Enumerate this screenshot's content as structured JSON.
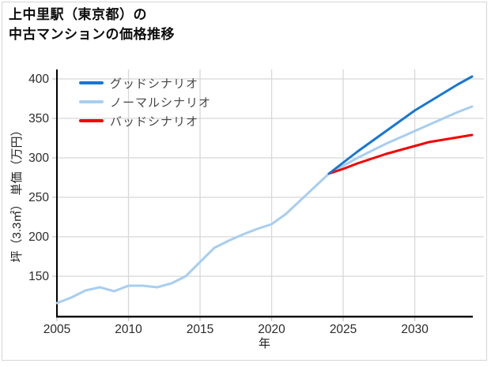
{
  "page": {
    "title_line1": "上中里駅（東京都）の",
    "title_line2": "中古マンションの価格推移"
  },
  "legend": {
    "items": [
      {
        "key": "good",
        "label": "グッドシナリオ",
        "color": "#1777d2"
      },
      {
        "key": "normal",
        "label": "ノーマルシナリオ",
        "color": "#a8cef0"
      },
      {
        "key": "bad",
        "label": "バッドシナリオ",
        "color": "#f40000"
      }
    ]
  },
  "chart_data": {
    "type": "line",
    "title": "上中里駅（東京都）の中古マンションの価格推移",
    "xlabel": "年",
    "ylabel": "坪（3.3㎡） 単価（万円）",
    "xlim": [
      2005,
      2034
    ],
    "ylim": [
      99,
      412
    ],
    "x_ticks": [
      2005,
      2010,
      2015,
      2020,
      2025,
      2030
    ],
    "y_ticks": [
      150,
      200,
      250,
      300,
      350,
      400
    ],
    "grid": true,
    "legend_position": "upper-left",
    "series": [
      {
        "key": "normal",
        "name": "ノーマルシナリオ",
        "color": "#a8cef0",
        "x": [
          2005,
          2006,
          2007,
          2008,
          2009,
          2010,
          2011,
          2012,
          2013,
          2014,
          2015,
          2016,
          2017,
          2018,
          2019,
          2020,
          2021,
          2022,
          2023,
          2024,
          2025,
          2026,
          2027,
          2028,
          2029,
          2030,
          2031,
          2032,
          2033,
          2034
        ],
        "values": [
          116,
          123,
          132,
          136,
          131,
          138,
          138,
          136,
          141,
          150,
          168,
          186,
          195,
          203,
          210,
          216,
          229,
          246,
          263,
          280,
          290,
          300,
          309,
          318,
          326,
          334,
          342,
          350,
          358,
          365
        ]
      },
      {
        "key": "bad",
        "name": "バッドシナリオ",
        "color": "#f40000",
        "x": [
          2024,
          2025,
          2026,
          2027,
          2028,
          2029,
          2030,
          2031,
          2032,
          2033,
          2034
        ],
        "values": [
          280,
          286,
          293,
          299,
          305,
          310,
          315,
          320,
          323,
          326,
          329
        ]
      },
      {
        "key": "good",
        "name": "グッドシナリオ",
        "color": "#1777d2",
        "x": [
          2024,
          2025,
          2026,
          2027,
          2028,
          2029,
          2030,
          2031,
          2032,
          2033,
          2034
        ],
        "values": [
          280,
          294,
          308,
          321,
          334,
          347,
          360,
          371,
          382,
          393,
          403
        ]
      }
    ],
    "style": {
      "grid_color": "#d8d8d8",
      "spine_color": "#000000",
      "tick_label_color": "#2b2b2b",
      "line_width": 3
    }
  }
}
